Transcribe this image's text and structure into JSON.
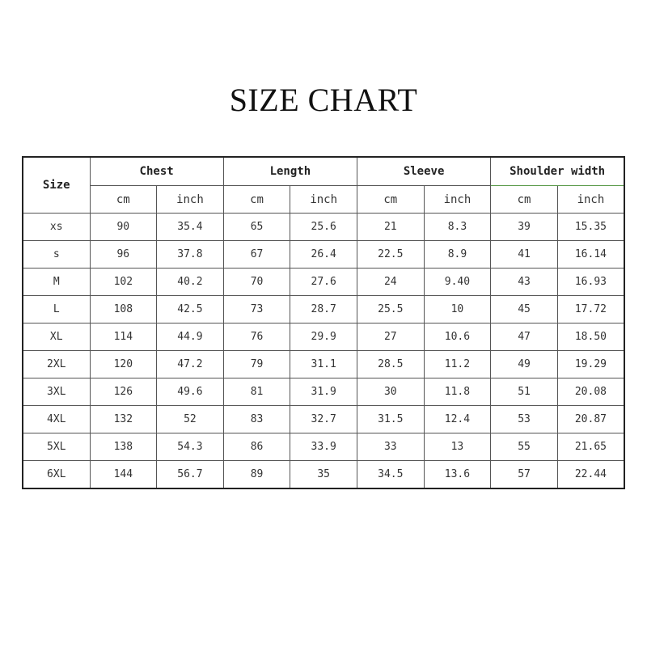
{
  "title": "SIZE CHART",
  "table": {
    "size_header": "Size",
    "groups": [
      "Chest",
      "Length",
      "Sleeve",
      "Shoulder width"
    ],
    "units": [
      "cm",
      "inch"
    ],
    "rows": [
      [
        "xs",
        "90",
        "35.4",
        "65",
        "25.6",
        "21",
        "8.3",
        "39",
        "15.35"
      ],
      [
        "s",
        "96",
        "37.8",
        "67",
        "26.4",
        "22.5",
        "8.9",
        "41",
        "16.14"
      ],
      [
        "M",
        "102",
        "40.2",
        "70",
        "27.6",
        "24",
        "9.40",
        "43",
        "16.93"
      ],
      [
        "L",
        "108",
        "42.5",
        "73",
        "28.7",
        "25.5",
        "10",
        "45",
        "17.72"
      ],
      [
        "XL",
        "114",
        "44.9",
        "76",
        "29.9",
        "27",
        "10.6",
        "47",
        "18.50"
      ],
      [
        "2XL",
        "120",
        "47.2",
        "79",
        "31.1",
        "28.5",
        "11.2",
        "49",
        "19.29"
      ],
      [
        "3XL",
        "126",
        "49.6",
        "81",
        "31.9",
        "30",
        "11.8",
        "51",
        "20.08"
      ],
      [
        "4XL",
        "132",
        "52",
        "83",
        "32.7",
        "31.5",
        "12.4",
        "53",
        "20.87"
      ],
      [
        "5XL",
        "138",
        "54.3",
        "86",
        "33.9",
        "33",
        "13",
        "55",
        "21.65"
      ],
      [
        "6XL",
        "144",
        "56.7",
        "89",
        "35",
        "34.5",
        "13.6",
        "57",
        "22.44"
      ]
    ]
  }
}
